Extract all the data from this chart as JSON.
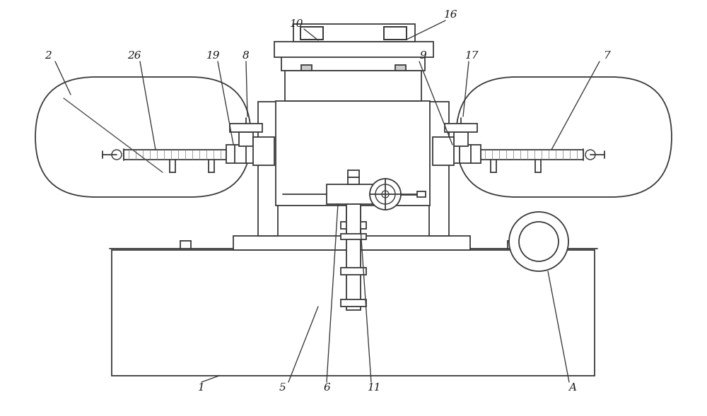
{
  "bg_color": "#ffffff",
  "lc": "#3a3a3a",
  "lw": 1.3,
  "fig_w": 10.0,
  "fig_h": 5.89,
  "dpi": 100
}
